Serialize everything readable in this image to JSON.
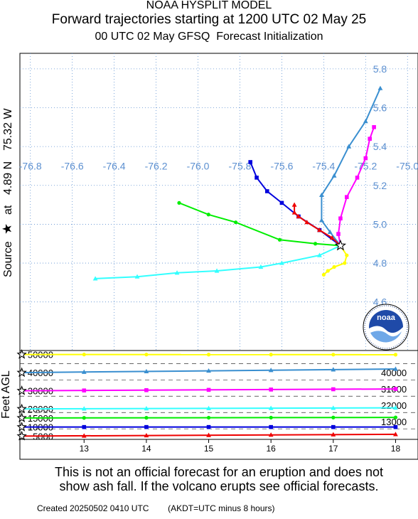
{
  "header": {
    "line1": "NOAA HYSPLIT MODEL",
    "line2": "Forward trajectories starting at 1200 UTC 02 May 25",
    "line3_a": "00 UTC 02 May",
    "line3_b": "GFSQ  Forecast Initialization"
  },
  "source": {
    "lat_label": "4.89 N",
    "lon_label": "75.32 W",
    "at_label": "at",
    "source_label": "Source",
    "lat": 4.89,
    "lon": -75.32
  },
  "colors": {
    "frame": "#000000",
    "grid": "#5b8fd0",
    "tick_label": "#5b8fd0",
    "yellow": "#ffff00",
    "steelblue": "#3a8fd0",
    "magenta": "#ff00ff",
    "cyan": "#33ffff",
    "green": "#00ee00",
    "blue": "#0000dd",
    "red": "#ee0000"
  },
  "map": {
    "lon_ticks": [
      "-76.8",
      "-76.6",
      "-76.4",
      "-76.2",
      "-76.0",
      "-75.8",
      "-75.6",
      "-75.4",
      "-75.2",
      "-75.0"
    ],
    "lat_ticks": [
      "5.8",
      "5.6",
      "5.4",
      "5.2",
      "5.0",
      "4.8",
      "4.6"
    ],
    "lon_tick_values": [
      -76.8,
      -76.6,
      -76.4,
      -76.2,
      -76.0,
      -75.8,
      -75.6,
      -75.4,
      -75.2,
      -75.0
    ],
    "lat_tick_values": [
      5.8,
      5.6,
      5.4,
      5.2,
      5.0,
      4.8,
      4.6
    ],
    "logo_text": "noaa"
  },
  "chart_data": {
    "type": "line",
    "x_unit": "degrees longitude",
    "y_unit": "degrees latitude",
    "xlim": [
      -76.85,
      -74.95
    ],
    "ylim": [
      4.35,
      5.88
    ],
    "series": [
      {
        "color_key": "yellow",
        "marker": "circle",
        "points": [
          [
            -75.32,
            4.89
          ],
          [
            -75.29,
            4.84
          ],
          [
            -75.3,
            4.8
          ],
          [
            -75.35,
            4.78
          ],
          [
            -75.38,
            4.76
          ],
          [
            -75.4,
            4.74
          ]
        ]
      },
      {
        "color_key": "steelblue",
        "marker": "triangle",
        "points": [
          [
            -75.32,
            4.89
          ],
          [
            -75.37,
            4.96
          ],
          [
            -75.41,
            5.02
          ],
          [
            -75.41,
            5.15
          ],
          [
            -75.35,
            5.25
          ],
          [
            -75.28,
            5.4
          ],
          [
            -75.2,
            5.53
          ],
          [
            -75.13,
            5.7
          ]
        ]
      },
      {
        "color_key": "magenta",
        "marker": "square",
        "points": [
          [
            -75.32,
            4.89
          ],
          [
            -75.33,
            4.95
          ],
          [
            -75.32,
            5.03
          ],
          [
            -75.29,
            5.14
          ],
          [
            -75.24,
            5.24
          ],
          [
            -75.2,
            5.34
          ],
          [
            -75.18,
            5.44
          ],
          [
            -75.16,
            5.5
          ]
        ]
      },
      {
        "color_key": "cyan",
        "marker": "triangle",
        "points": [
          [
            -75.32,
            4.89
          ],
          [
            -75.42,
            4.84
          ],
          [
            -75.6,
            4.8
          ],
          [
            -75.7,
            4.78
          ],
          [
            -75.91,
            4.76
          ],
          [
            -76.1,
            4.75
          ],
          [
            -76.29,
            4.73
          ],
          [
            -76.49,
            4.72
          ]
        ]
      },
      {
        "color_key": "green",
        "marker": "circle",
        "points": [
          [
            -75.32,
            4.89
          ],
          [
            -75.44,
            4.9
          ],
          [
            -75.61,
            4.92
          ],
          [
            -75.82,
            5.01
          ],
          [
            -75.95,
            5.05
          ],
          [
            -76.09,
            5.11
          ]
        ]
      },
      {
        "color_key": "blue",
        "marker": "square",
        "points": [
          [
            -75.32,
            4.89
          ],
          [
            -75.42,
            4.97
          ],
          [
            -75.52,
            5.04
          ],
          [
            -75.6,
            5.11
          ],
          [
            -75.67,
            5.17
          ],
          [
            -75.72,
            5.24
          ],
          [
            -75.75,
            5.32
          ]
        ]
      },
      {
        "color_key": "red",
        "marker": "triangle",
        "points": [
          [
            -75.32,
            4.89
          ],
          [
            -75.36,
            4.93
          ],
          [
            -75.42,
            4.97
          ],
          [
            -75.48,
            5.01
          ],
          [
            -75.52,
            5.04
          ],
          [
            -75.54,
            5.06
          ],
          [
            -75.54,
            5.1
          ]
        ]
      }
    ],
    "height_panel": {
      "ylabel": "Feet AGL",
      "x_ticks": [
        "13",
        "14",
        "15",
        "16",
        "17",
        "18"
      ],
      "x_tick_values": [
        13,
        14,
        15,
        16,
        17,
        18
      ],
      "xlim": [
        11.97,
        18.36
      ],
      "ylim": [
        3200,
        52200
      ],
      "y_ticks_left": [
        "50000",
        "40000",
        "30000",
        "20000",
        "15000",
        "10000",
        "5000"
      ],
      "y_tick_values_left": [
        50000,
        40000,
        30000,
        20000,
        15000,
        10000,
        5000
      ],
      "y_ticks_right": [
        "40000",
        "31000",
        "22000",
        "13000"
      ],
      "y_tick_values_right": [
        40000,
        31000,
        22000,
        13000
      ],
      "dashed_levels": [
        9000,
        18000,
        27000,
        36000,
        45000
      ],
      "marker_hours": [
        13,
        14,
        15,
        16,
        17,
        18
      ],
      "series": [
        {
          "color_key": "yellow",
          "marker": "circle",
          "start": 50000,
          "end": 49900
        },
        {
          "color_key": "steelblue",
          "marker": "triangle",
          "start": 40000,
          "end": 42000
        },
        {
          "color_key": "magenta",
          "marker": "square",
          "start": 30000,
          "end": 31000
        },
        {
          "color_key": "cyan",
          "marker": "triangle",
          "start": 20000,
          "end": 20600
        },
        {
          "color_key": "green",
          "marker": "circle",
          "start": 15000,
          "end": 15300
        },
        {
          "color_key": "blue",
          "marker": "square",
          "start": 10000,
          "end": 10000
        },
        {
          "color_key": "red",
          "marker": "triangle",
          "start": 5000,
          "end": 6000
        }
      ]
    }
  },
  "disclaimer": {
    "line1": "This is not an official forecast for an eruption and does not",
    "line2": "show ash fall. If the volcano erupts see official forecasts."
  },
  "footer": {
    "created": "Created 20250502 0410 UTC",
    "tz_note": "(AKDT=UTC minus 8 hours)"
  }
}
